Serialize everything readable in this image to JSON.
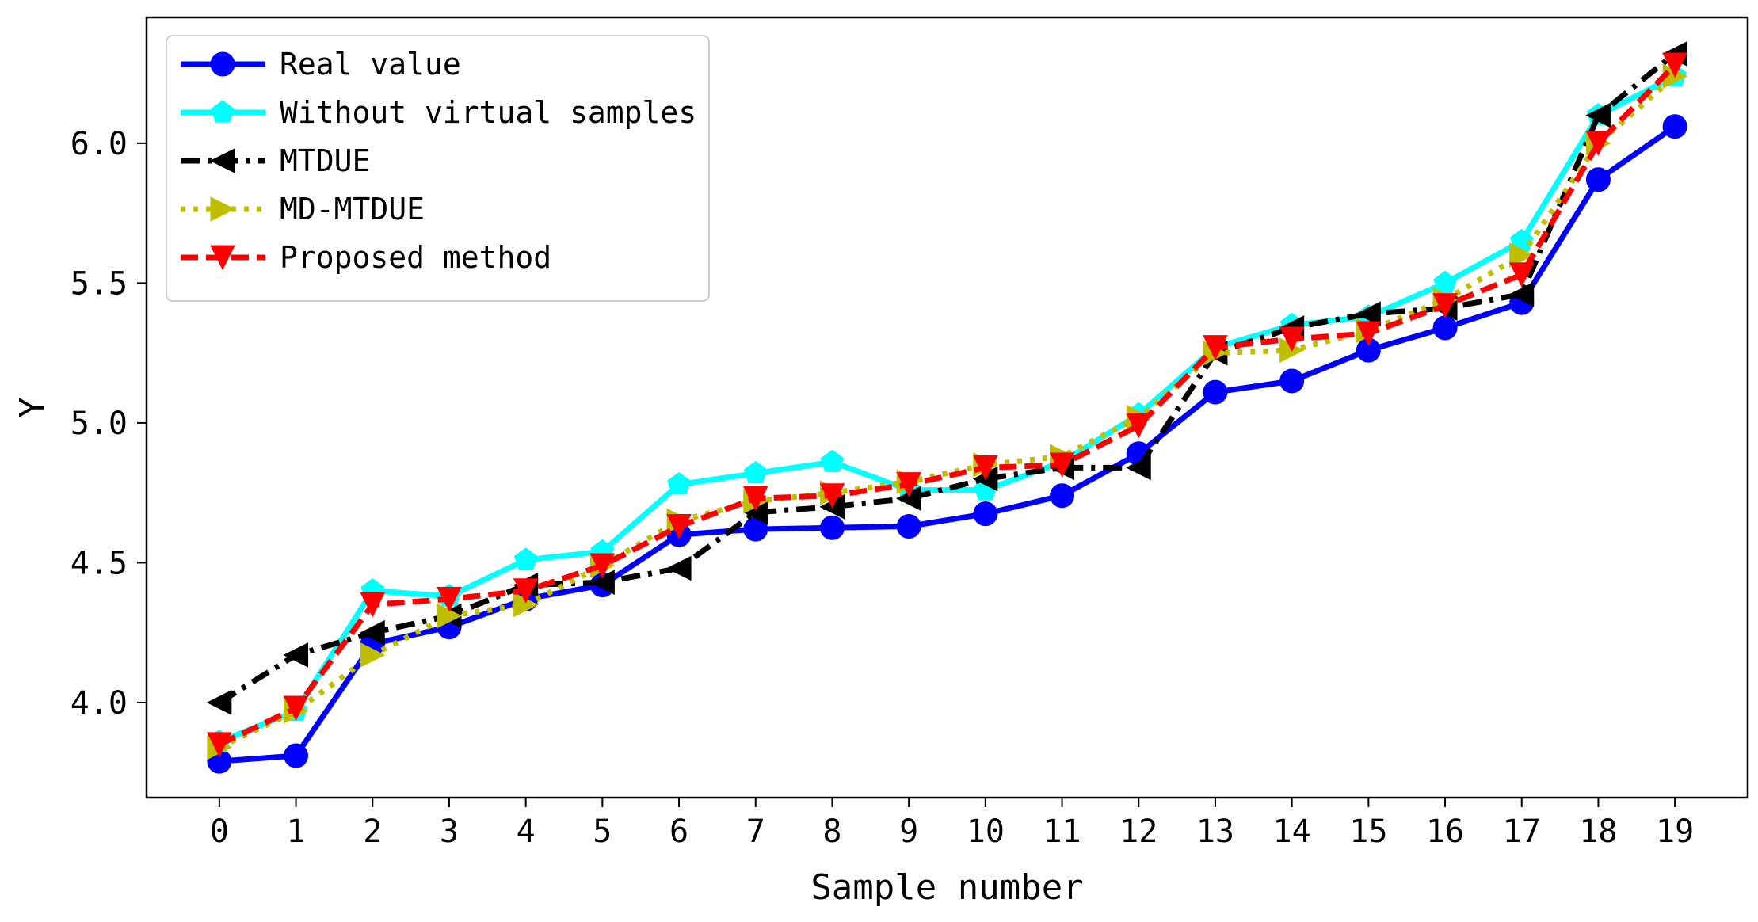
{
  "chart_data": {
    "type": "line",
    "title": "",
    "xlabel": "Sample number",
    "ylabel": "Y",
    "x": [
      0,
      1,
      2,
      3,
      4,
      5,
      6,
      7,
      8,
      9,
      10,
      11,
      12,
      13,
      14,
      15,
      16,
      17,
      18,
      19
    ],
    "xticks": [
      "0",
      "1",
      "2",
      "3",
      "4",
      "5",
      "6",
      "7",
      "8",
      "9",
      "10",
      "11",
      "12",
      "13",
      "14",
      "15",
      "16",
      "17",
      "18",
      "19"
    ],
    "xlim": [
      -0.95,
      19.95
    ],
    "ylim": [
      3.66,
      6.45
    ],
    "yticks": [
      4.0,
      4.5,
      5.0,
      5.5,
      6.0
    ],
    "ytick_labels": [
      "4.0",
      "4.5",
      "5.0",
      "5.5",
      "6.0"
    ],
    "grid": false,
    "legend_position": "top-left",
    "series": [
      {
        "name": "Real value",
        "color": "#0000ff",
        "line_style": "solid",
        "marker": "circle",
        "values": [
          3.79,
          3.81,
          4.21,
          4.27,
          4.37,
          4.42,
          4.6,
          4.62,
          4.625,
          4.63,
          4.675,
          4.74,
          4.89,
          5.11,
          5.15,
          5.26,
          5.34,
          5.43,
          5.87,
          6.06
        ]
      },
      {
        "name": "Without virtual samples",
        "color": "#00ffff",
        "line_style": "solid",
        "marker": "pentagon",
        "values": [
          3.86,
          3.97,
          4.4,
          4.38,
          4.51,
          4.54,
          4.78,
          4.82,
          4.86,
          4.76,
          4.76,
          4.86,
          5.03,
          5.27,
          5.35,
          5.38,
          5.5,
          5.65,
          6.1,
          6.24
        ]
      },
      {
        "name": "MTDUE",
        "color": "#000000",
        "line_style": "dashdot",
        "marker": "triangle-left",
        "values": [
          4.0,
          4.17,
          4.25,
          4.31,
          4.42,
          4.43,
          4.48,
          4.68,
          4.7,
          4.73,
          4.8,
          4.84,
          4.84,
          5.25,
          5.34,
          5.39,
          5.41,
          5.46,
          6.1,
          6.32
        ]
      },
      {
        "name": "MD-MTDUE",
        "color": "#bfbf00",
        "line_style": "dotted",
        "marker": "triangle-right",
        "values": [
          3.84,
          3.97,
          4.17,
          4.31,
          4.35,
          4.49,
          4.65,
          4.72,
          4.75,
          4.79,
          4.85,
          4.88,
          5.02,
          5.25,
          5.26,
          5.33,
          5.44,
          5.6,
          6.0,
          6.24
        ]
      },
      {
        "name": "Proposed method",
        "color": "#ff0000",
        "line_style": "dashed",
        "marker": "triangle-down",
        "values": [
          3.85,
          3.98,
          4.35,
          4.37,
          4.4,
          4.49,
          4.63,
          4.73,
          4.74,
          4.78,
          4.84,
          4.85,
          4.99,
          5.27,
          5.3,
          5.32,
          5.42,
          5.53,
          6.0,
          6.28
        ]
      }
    ]
  }
}
